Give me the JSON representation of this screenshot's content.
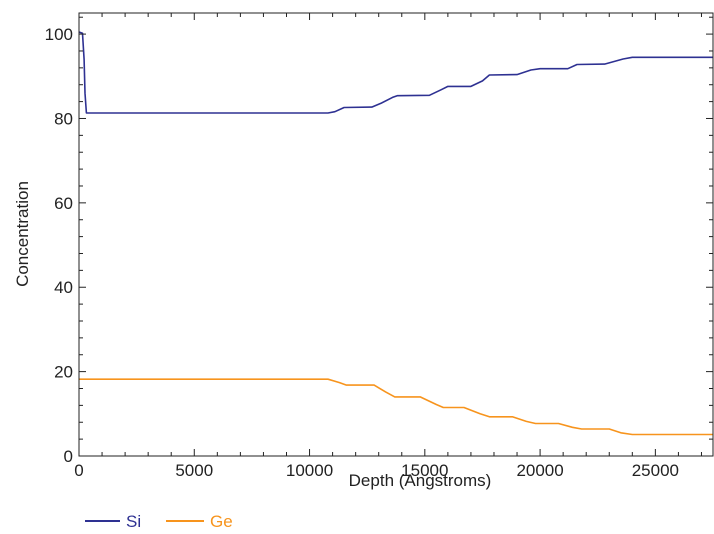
{
  "chart_data": {
    "type": "line",
    "title": "",
    "xlabel": "Depth (Angstroms)",
    "ylabel": "Concentration",
    "xlim": [
      0,
      27500
    ],
    "ylim": [
      0,
      105
    ],
    "x_ticks": [
      0,
      5000,
      10000,
      15000,
      20000,
      25000
    ],
    "y_ticks": [
      0,
      20,
      40,
      60,
      80,
      100
    ],
    "grid": false,
    "legend_position": "bottom-left",
    "series": [
      {
        "name": "Si",
        "color": "#2e3192",
        "points": [
          [
            0,
            100.5
          ],
          [
            150,
            100.2
          ],
          [
            220,
            94
          ],
          [
            260,
            86
          ],
          [
            320,
            81.3
          ],
          [
            10800,
            81.3
          ],
          [
            11100,
            81.6
          ],
          [
            11500,
            82.6
          ],
          [
            12700,
            82.7
          ],
          [
            13100,
            83.6
          ],
          [
            13600,
            85
          ],
          [
            13800,
            85.4
          ],
          [
            15200,
            85.5
          ],
          [
            15700,
            86.8
          ],
          [
            16000,
            87.6
          ],
          [
            17000,
            87.6
          ],
          [
            17500,
            88.9
          ],
          [
            17800,
            90.3
          ],
          [
            19000,
            90.4
          ],
          [
            19600,
            91.5
          ],
          [
            20000,
            91.8
          ],
          [
            21200,
            91.8
          ],
          [
            21600,
            92.8
          ],
          [
            22800,
            92.9
          ],
          [
            23600,
            94.1
          ],
          [
            24000,
            94.5
          ],
          [
            27500,
            94.5
          ]
        ]
      },
      {
        "name": "Ge",
        "color": "#f7941d",
        "points": [
          [
            0,
            18.2
          ],
          [
            10800,
            18.2
          ],
          [
            11300,
            17.4
          ],
          [
            11600,
            16.8
          ],
          [
            12800,
            16.8
          ],
          [
            13300,
            15.2
          ],
          [
            13700,
            14.0
          ],
          [
            14800,
            14.0
          ],
          [
            15500,
            12.2
          ],
          [
            15800,
            11.5
          ],
          [
            16700,
            11.5
          ],
          [
            17400,
            10.0
          ],
          [
            17800,
            9.3
          ],
          [
            18800,
            9.3
          ],
          [
            19400,
            8.2
          ],
          [
            19800,
            7.7
          ],
          [
            20800,
            7.7
          ],
          [
            21400,
            6.8
          ],
          [
            21800,
            6.4
          ],
          [
            23000,
            6.4
          ],
          [
            23500,
            5.5
          ],
          [
            24000,
            5.1
          ],
          [
            27500,
            5.1
          ]
        ]
      }
    ]
  }
}
